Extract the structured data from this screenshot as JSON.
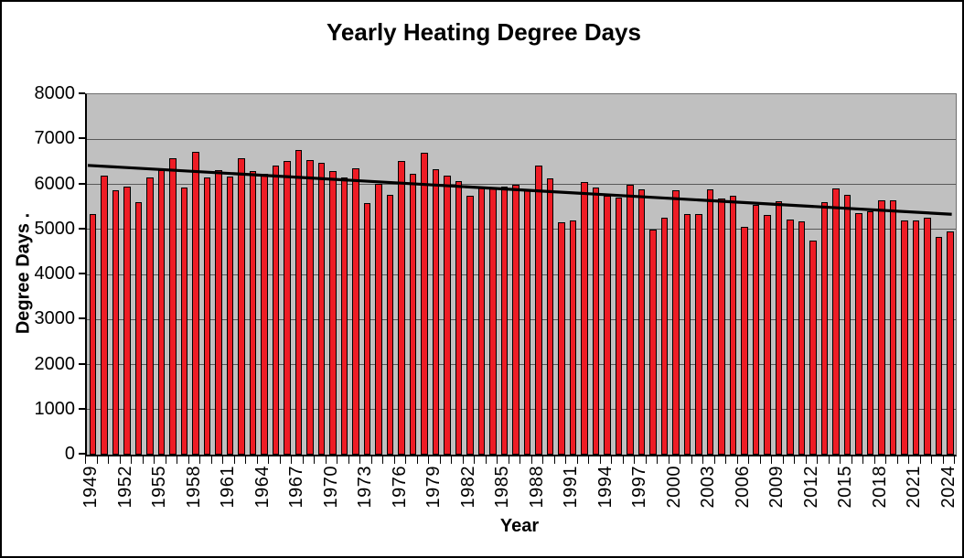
{
  "figure": {
    "title": "Yearly Heating Degree Days",
    "x_axis_title": "Year",
    "y_axis_title": "Degree Days  ."
  },
  "chart_data": {
    "type": "bar",
    "title": "Yearly Heating Degree Days",
    "xlabel": "Year",
    "ylabel": "Degree Days",
    "ylim": [
      0,
      8000
    ],
    "y_ticks": [
      0,
      1000,
      2000,
      3000,
      4000,
      5000,
      6000,
      7000,
      8000
    ],
    "x_tick_labels": [
      "1949",
      "1952",
      "1955",
      "1958",
      "1961",
      "1964",
      "1967",
      "1970",
      "1973",
      "1976",
      "1979",
      "1982",
      "1985",
      "1988",
      "1991",
      "1994",
      "1997",
      "2000",
      "2003",
      "2006",
      "2009",
      "2012",
      "2015",
      "2018",
      "2021",
      "2024"
    ],
    "grid": true,
    "legend": false,
    "bar_color": "#ee1c25",
    "bar_outline_color": "#000000",
    "plot_bg_color": "#c0c0c0",
    "gridline_color": "#595959",
    "categories": [
      1949,
      1950,
      1951,
      1952,
      1953,
      1954,
      1955,
      1956,
      1957,
      1958,
      1959,
      1960,
      1961,
      1962,
      1963,
      1964,
      1965,
      1966,
      1967,
      1968,
      1969,
      1970,
      1971,
      1972,
      1973,
      1974,
      1975,
      1976,
      1977,
      1978,
      1979,
      1980,
      1981,
      1982,
      1983,
      1984,
      1985,
      1986,
      1987,
      1988,
      1989,
      1990,
      1991,
      1992,
      1993,
      1994,
      1995,
      1996,
      1997,
      1998,
      1999,
      2000,
      2001,
      2002,
      2003,
      2004,
      2005,
      2006,
      2007,
      2008,
      2009,
      2010,
      2011,
      2012,
      2013,
      2014,
      2015,
      2016,
      2017,
      2018,
      2019,
      2020,
      2021,
      2022,
      2023,
      2024
    ],
    "values": [
      5350,
      6200,
      5870,
      5940,
      5610,
      6150,
      6320,
      6580,
      5920,
      6720,
      6160,
      6310,
      6180,
      6580,
      6290,
      6230,
      6410,
      6510,
      6770,
      6530,
      6470,
      6300,
      6160,
      6350,
      5590,
      6020,
      5770,
      6510,
      6230,
      6700,
      6330,
      6190,
      6070,
      5750,
      5950,
      5920,
      5950,
      5990,
      5870,
      6410,
      6130,
      5150,
      5200,
      6060,
      5930,
      5740,
      5700,
      6000,
      5880,
      4990,
      5260,
      5870,
      5350,
      5350,
      5890,
      5680,
      5740,
      5050,
      5540,
      5310,
      5630,
      5220,
      5180,
      4760,
      5610,
      5910,
      5770,
      5360,
      5400,
      5650,
      5650,
      5190,
      5200,
      5250,
      4840,
      4950
    ],
    "trendline": {
      "type": "linear",
      "color": "#000000",
      "start_category": 1949,
      "end_category": 2024,
      "start_value": 6420,
      "end_value": 5335
    }
  }
}
